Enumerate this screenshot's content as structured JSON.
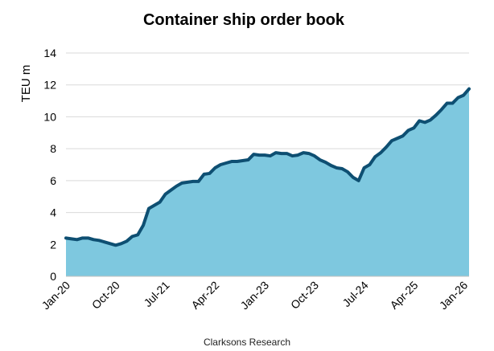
{
  "chart_data": {
    "type": "area",
    "title": "Container ship order book",
    "ylabel": "TEU m",
    "xlabel": "",
    "source": "Clarksons Research",
    "ylim": [
      0,
      14
    ],
    "yticks": [
      0,
      2,
      4,
      6,
      8,
      10,
      12,
      14
    ],
    "grid": true,
    "colors": {
      "fill": "#7ec8df",
      "line": "#0e4f72",
      "grid": "#d9d9d9"
    },
    "x_tick_labels": [
      {
        "label": "Jan-20",
        "index": 0
      },
      {
        "label": "Oct-20",
        "index": 9
      },
      {
        "label": "Jul-21",
        "index": 18
      },
      {
        "label": "Apr-22",
        "index": 27
      },
      {
        "label": "Jan-23",
        "index": 36
      },
      {
        "label": "Oct-23",
        "index": 45
      },
      {
        "label": "Jul-24",
        "index": 54
      },
      {
        "label": "Apr-25",
        "index": 63
      },
      {
        "label": "Jan-26",
        "index": 72
      }
    ],
    "x": [
      "2020-01",
      "2020-02",
      "2020-03",
      "2020-04",
      "2020-05",
      "2020-06",
      "2020-07",
      "2020-08",
      "2020-09",
      "2020-10",
      "2020-11",
      "2020-12",
      "2021-01",
      "2021-02",
      "2021-03",
      "2021-04",
      "2021-05",
      "2021-06",
      "2021-07",
      "2021-08",
      "2021-09",
      "2021-10",
      "2021-11",
      "2021-12",
      "2022-01",
      "2022-02",
      "2022-03",
      "2022-04",
      "2022-05",
      "2022-06",
      "2022-07",
      "2022-08",
      "2022-09",
      "2022-10",
      "2022-11",
      "2022-12",
      "2023-01",
      "2023-02",
      "2023-03",
      "2023-04",
      "2023-05",
      "2023-06",
      "2023-07",
      "2023-08",
      "2023-09",
      "2023-10",
      "2023-11",
      "2023-12",
      "2024-01",
      "2024-02",
      "2024-03",
      "2024-04",
      "2024-05",
      "2024-06",
      "2024-07",
      "2024-08",
      "2024-09",
      "2024-10",
      "2024-11",
      "2024-12",
      "2025-01",
      "2025-02",
      "2025-03",
      "2025-04",
      "2025-05",
      "2025-06",
      "2025-07",
      "2025-08",
      "2025-09",
      "2025-10",
      "2025-11",
      "2025-12",
      "2026-01",
      "2026-02"
    ],
    "series": [
      {
        "values": [
          2.4,
          2.35,
          2.3,
          2.4,
          2.4,
          2.3,
          2.25,
          2.15,
          2.05,
          1.95,
          2.05,
          2.2,
          2.5,
          2.6,
          3.2,
          4.25,
          4.45,
          4.65,
          5.15,
          5.4,
          5.65,
          5.85,
          5.9,
          5.95,
          5.95,
          6.4,
          6.45,
          6.8,
          7.0,
          7.1,
          7.2,
          7.2,
          7.25,
          7.3,
          7.65,
          7.6,
          7.6,
          7.55,
          7.75,
          7.7,
          7.7,
          7.55,
          7.6,
          7.75,
          7.7,
          7.55,
          7.3,
          7.15,
          6.95,
          6.8,
          6.75,
          6.55,
          6.2,
          6.0,
          6.8,
          7.0,
          7.5,
          7.75,
          8.1,
          8.5,
          8.65,
          8.8,
          9.15,
          9.3,
          9.75,
          9.65,
          9.8,
          10.1,
          10.45,
          10.85,
          10.85,
          11.2,
          11.35,
          11.75
        ]
      }
    ]
  }
}
